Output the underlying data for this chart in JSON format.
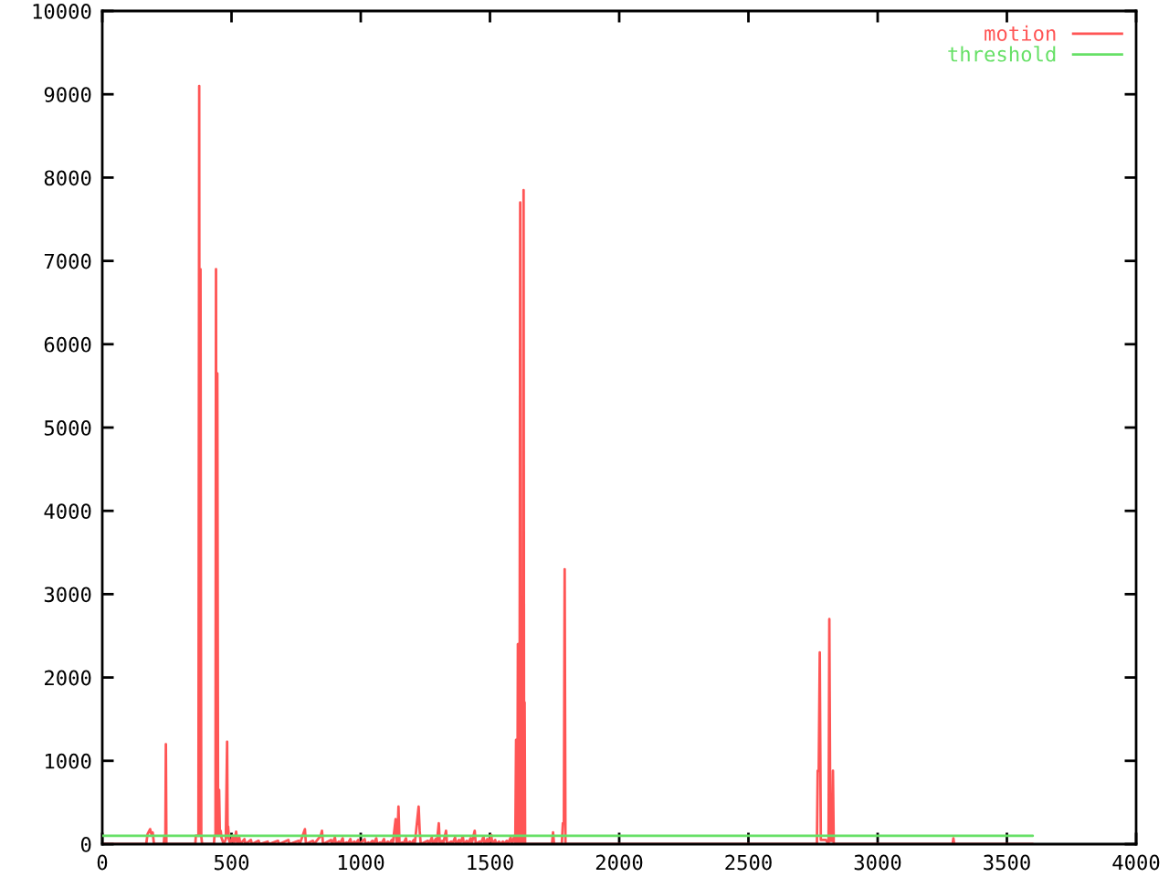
{
  "chart_data": {
    "type": "line",
    "xlim": [
      0,
      4000
    ],
    "xticks": [
      0,
      500,
      1000,
      1500,
      2000,
      2500,
      3000,
      3500,
      4000
    ],
    "ylim": [
      0,
      10000
    ],
    "yticks": [
      0,
      1000,
      2000,
      3000,
      4000,
      5000,
      6000,
      7000,
      8000,
      9000,
      10000
    ],
    "grid": false,
    "legend": "top right",
    "series": [
      {
        "name": "motion",
        "color": "#ff5555",
        "x": [
          0,
          170,
          175,
          180,
          185,
          190,
          195,
          200,
          238,
          240,
          244,
          246,
          248,
          360,
          362,
          372,
          375,
          377,
          380,
          383,
          386,
          432,
          434,
          438,
          440,
          442,
          445,
          448,
          452,
          455,
          458,
          461,
          470,
          478,
          483,
          485,
          487,
          490,
          495,
          505,
          509,
          518,
          522,
          530,
          534,
          550,
          554,
          575,
          579,
          605,
          609,
          640,
          644,
          680,
          684,
          720,
          724,
          760,
          764,
          784,
          788,
          815,
          819,
          845,
          850,
          854,
          885,
          889,
          900,
          904,
          915,
          919,
          930,
          934,
          945,
          949,
          960,
          964,
          975,
          979,
          990,
          994,
          1015,
          1019,
          1030,
          1034,
          1045,
          1049,
          1060,
          1064,
          1075,
          1079,
          1090,
          1094,
          1105,
          1109,
          1120,
          1124,
          1135,
          1139,
          1142,
          1146,
          1150,
          1160,
          1164,
          1175,
          1179,
          1190,
          1194,
          1205,
          1209,
          1224,
          1228,
          1232,
          1260,
          1264,
          1275,
          1279,
          1290,
          1294,
          1302,
          1306,
          1315,
          1319,
          1330,
          1334,
          1350,
          1354,
          1365,
          1369,
          1380,
          1384,
          1395,
          1399,
          1410,
          1414,
          1425,
          1429,
          1441,
          1445,
          1460,
          1464,
          1475,
          1479,
          1490,
          1494,
          1505,
          1509,
          1520,
          1524,
          1535,
          1539,
          1550,
          1554,
          1565,
          1569,
          1580,
          1584,
          1595,
          1598,
          1601,
          1602,
          1604,
          1605,
          1607,
          1608,
          1609,
          1610,
          1612,
          1613,
          1615,
          1617,
          1619,
          1620,
          1622,
          1623,
          1625,
          1627,
          1630,
          1632,
          1634,
          1636,
          1740,
          1744,
          1748,
          1778,
          1782,
          1786,
          1789,
          1792,
          2765,
          2768,
          2772,
          2776,
          2780,
          2800,
          2810,
          2813,
          2817,
          2824,
          2827,
          2830,
          3290,
          3293,
          3296,
          3600
        ],
        "values": [
          0,
          0,
          120,
          150,
          180,
          120,
          140,
          0,
          0,
          100,
          0,
          1200,
          0,
          0,
          100,
          100,
          9100,
          100,
          6900,
          100,
          0,
          0,
          100,
          100,
          6900,
          100,
          5650,
          100,
          650,
          100,
          160,
          80,
          0,
          60,
          1230,
          80,
          210,
          60,
          0,
          100,
          0,
          150,
          0,
          80,
          0,
          60,
          0,
          50,
          0,
          40,
          0,
          30,
          0,
          40,
          0,
          50,
          0,
          40,
          0,
          180,
          0,
          40,
          0,
          100,
          160,
          0,
          50,
          0,
          80,
          0,
          30,
          0,
          70,
          0,
          20,
          0,
          60,
          0,
          30,
          0,
          50,
          0,
          60,
          0,
          20,
          0,
          40,
          0,
          70,
          0,
          20,
          0,
          60,
          0,
          30,
          0,
          50,
          0,
          300,
          0,
          80,
          450,
          0,
          20,
          0,
          70,
          0,
          30,
          0,
          50,
          0,
          450,
          160,
          0,
          40,
          0,
          80,
          0,
          60,
          0,
          250,
          0,
          40,
          0,
          160,
          0,
          30,
          0,
          80,
          0,
          50,
          0,
          90,
          0,
          40,
          0,
          70,
          0,
          160,
          0,
          30,
          0,
          90,
          0,
          60,
          0,
          110,
          0,
          50,
          0,
          30,
          0,
          30,
          0,
          40,
          0,
          80,
          0,
          100,
          0,
          1250,
          0,
          1250,
          0,
          1250,
          2400,
          0,
          2400,
          2400,
          0,
          2400,
          7700,
          0,
          1700,
          1700,
          0,
          1700,
          0,
          7850,
          0,
          1700,
          0,
          0,
          140,
          0,
          0,
          250,
          250,
          3300,
          0,
          0,
          880,
          880,
          2300,
          50,
          50,
          0,
          2700,
          40,
          40,
          880,
          0,
          0,
          70,
          0,
          0
        ]
      },
      {
        "name": "threshold",
        "color": "#66e066",
        "x": [
          0,
          3600
        ],
        "values": [
          100,
          100
        ]
      }
    ]
  }
}
